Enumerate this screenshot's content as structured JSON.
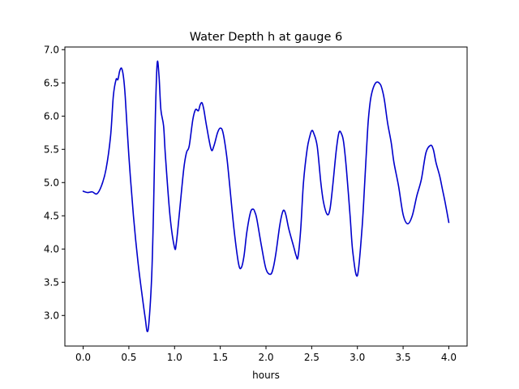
{
  "chart_data": {
    "type": "line",
    "title": "Water Depth h at gauge 6",
    "xlabel": "hours",
    "ylabel": "",
    "xlim": [
      -0.2,
      4.2
    ],
    "ylim": [
      2.54,
      7.04
    ],
    "xticks": [
      0.0,
      0.5,
      1.0,
      1.5,
      2.0,
      2.5,
      3.0,
      3.5,
      4.0
    ],
    "xtick_labels": [
      "0.0",
      "0.5",
      "1.0",
      "1.5",
      "2.0",
      "2.5",
      "3.0",
      "3.5",
      "4.0"
    ],
    "yticks": [
      3.0,
      3.5,
      4.0,
      4.5,
      5.0,
      5.5,
      6.0,
      6.5,
      7.0
    ],
    "ytick_labels": [
      "3.0",
      "3.5",
      "4.0",
      "4.5",
      "5.0",
      "5.5",
      "6.0",
      "6.5",
      "7.0"
    ],
    "grid": false,
    "legend": "none",
    "series": [
      {
        "color": "#0000cc",
        "x": [
          0.0,
          0.05,
          0.1,
          0.15,
          0.2,
          0.25,
          0.3,
          0.33,
          0.36,
          0.38,
          0.4,
          0.42,
          0.44,
          0.46,
          0.5,
          0.55,
          0.6,
          0.65,
          0.68,
          0.7,
          0.72,
          0.75,
          0.77,
          0.79,
          0.81,
          0.83,
          0.85,
          0.88,
          0.9,
          0.95,
          1.0,
          1.02,
          1.05,
          1.1,
          1.13,
          1.16,
          1.2,
          1.23,
          1.26,
          1.28,
          1.3,
          1.32,
          1.35,
          1.4,
          1.43,
          1.47,
          1.5,
          1.53,
          1.57,
          1.6,
          1.65,
          1.7,
          1.73,
          1.76,
          1.79,
          1.83,
          1.86,
          1.88,
          1.9,
          1.95,
          2.0,
          2.05,
          2.08,
          2.11,
          2.15,
          2.18,
          2.2,
          2.22,
          2.25,
          2.3,
          2.33,
          2.35,
          2.38,
          2.41,
          2.45,
          2.48,
          2.5,
          2.52,
          2.56,
          2.6,
          2.63,
          2.67,
          2.7,
          2.73,
          2.77,
          2.8,
          2.83,
          2.85,
          2.88,
          2.92,
          2.95,
          3.0,
          3.05,
          3.08,
          3.1,
          3.12,
          3.15,
          3.2,
          3.25,
          3.28,
          3.3,
          3.33,
          3.37,
          3.4,
          3.45,
          3.5,
          3.55,
          3.6,
          3.65,
          3.7,
          3.75,
          3.8,
          3.83,
          3.86,
          3.9,
          3.93,
          3.96,
          4.0
        ],
        "y": [
          4.87,
          4.85,
          4.86,
          4.83,
          4.95,
          5.2,
          5.7,
          6.3,
          6.55,
          6.55,
          6.68,
          6.72,
          6.6,
          6.3,
          5.4,
          4.5,
          3.8,
          3.25,
          2.95,
          2.76,
          2.9,
          3.6,
          4.6,
          6.0,
          6.8,
          6.6,
          6.1,
          5.85,
          5.4,
          4.5,
          4.02,
          4.1,
          4.5,
          5.2,
          5.45,
          5.55,
          5.95,
          6.1,
          6.08,
          6.17,
          6.2,
          6.1,
          5.85,
          5.5,
          5.55,
          5.75,
          5.82,
          5.75,
          5.4,
          5.0,
          4.3,
          3.78,
          3.72,
          3.9,
          4.25,
          4.55,
          4.6,
          4.55,
          4.45,
          4.05,
          3.7,
          3.62,
          3.72,
          3.95,
          4.35,
          4.55,
          4.58,
          4.5,
          4.3,
          4.05,
          3.9,
          3.88,
          4.3,
          5.0,
          5.5,
          5.7,
          5.78,
          5.75,
          5.55,
          5.0,
          4.7,
          4.52,
          4.6,
          4.95,
          5.5,
          5.76,
          5.72,
          5.6,
          5.2,
          4.5,
          3.95,
          3.6,
          4.3,
          5.0,
          5.5,
          5.95,
          6.3,
          6.5,
          6.48,
          6.35,
          6.2,
          5.9,
          5.6,
          5.3,
          4.95,
          4.52,
          4.38,
          4.5,
          4.8,
          5.05,
          5.45,
          5.56,
          5.5,
          5.3,
          5.1,
          4.9,
          4.7,
          4.4
        ]
      }
    ]
  }
}
